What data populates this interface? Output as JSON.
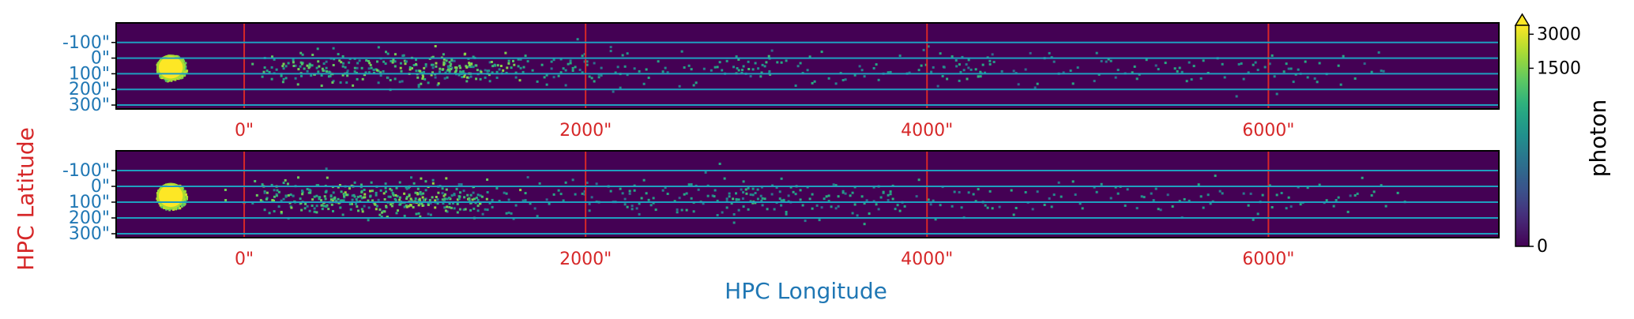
{
  "chart_data": {
    "type": "heatmap",
    "figure_xlabel": "HPC Longitude",
    "figure_ylabel": "HPC Latitude",
    "colormap": "viridis",
    "colors": {
      "grid_x": "#d62728",
      "grid_y": "#1f9fbf",
      "tick_x": "#d62728",
      "tick_y": "#1f77b4",
      "background": "#440154"
    },
    "xlim": [
      -750,
      7350
    ],
    "ylim": [
      -225,
      325
    ],
    "x_ticks": [
      {
        "value": 0,
        "label": "0\""
      },
      {
        "value": 2000,
        "label": "2000\""
      },
      {
        "value": 4000,
        "label": "4000\""
      },
      {
        "value": 6000,
        "label": "6000\""
      }
    ],
    "y_ticks": [
      {
        "value": -100,
        "label": "-100\""
      },
      {
        "value": 0,
        "label": "0\""
      },
      {
        "value": 100,
        "label": "100\""
      },
      {
        "value": 200,
        "label": "200\""
      },
      {
        "value": 300,
        "label": "300\""
      }
    ],
    "panels": [
      {
        "name": "top",
        "blobs": [
          {
            "x": -430,
            "y": 60,
            "wx": 160,
            "wy": 150,
            "intensity": 3000,
            "kind": "solid"
          },
          {
            "x": 1150,
            "y": 60,
            "wx": 420,
            "wy": 120,
            "intensity": 1300,
            "kind": "scatter",
            "density": 0.9
          },
          {
            "x": 500,
            "y": 60,
            "wx": 450,
            "wy": 110,
            "intensity": 1100,
            "kind": "scatter",
            "density": 0.55
          },
          {
            "x": 2900,
            "y": 50,
            "wx": 250,
            "wy": 90,
            "intensity": 700,
            "kind": "scatter",
            "density": 0.35
          },
          {
            "x": 4200,
            "y": 60,
            "wx": 250,
            "wy": 90,
            "intensity": 600,
            "kind": "scatter",
            "density": 0.3
          }
        ],
        "diffuse": {
          "x_start": 100,
          "x_end": 6800,
          "y_center": 60,
          "y_width": 120,
          "density_start": 0.25,
          "density_end": 0.06,
          "intensity": 600
        }
      },
      {
        "name": "bottom",
        "blobs": [
          {
            "x": -430,
            "y": 60,
            "wx": 160,
            "wy": 150,
            "intensity": 3000,
            "kind": "solid"
          },
          {
            "x": 1000,
            "y": 70,
            "wx": 500,
            "wy": 130,
            "intensity": 1400,
            "kind": "scatter",
            "density": 0.95
          },
          {
            "x": 400,
            "y": 70,
            "wx": 450,
            "wy": 120,
            "intensity": 1200,
            "kind": "scatter",
            "density": 0.65
          },
          {
            "x": 3000,
            "y": 60,
            "wx": 260,
            "wy": 90,
            "intensity": 700,
            "kind": "scatter",
            "density": 0.35
          }
        ],
        "diffuse": {
          "x_start": 100,
          "x_end": 6800,
          "y_center": 70,
          "y_width": 130,
          "density_start": 0.3,
          "density_end": 0.07,
          "intensity": 600
        }
      }
    ],
    "colorbar": {
      "label": "photon",
      "scale": "asinh",
      "vmin": 0,
      "vmax": 3600,
      "extend": "max",
      "ticks": [
        {
          "value": 0,
          "label": "0"
        },
        {
          "value": 1500,
          "label": "1500"
        },
        {
          "value": 3000,
          "label": "3000"
        }
      ]
    }
  }
}
